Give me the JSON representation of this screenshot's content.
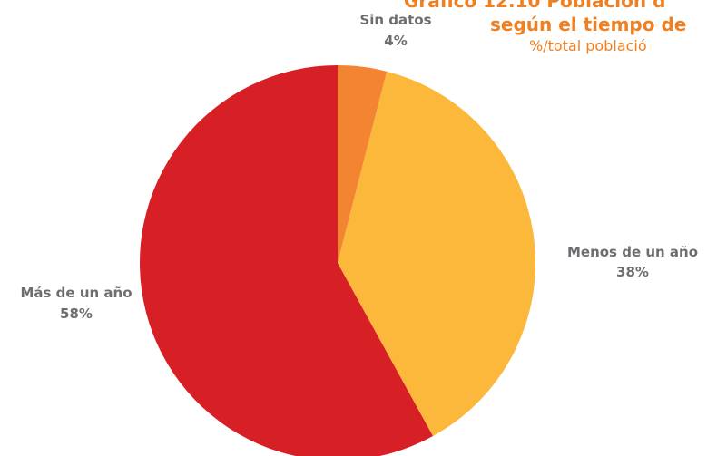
{
  "chart_data": {
    "type": "pie",
    "title": [
      "Gráfico 12.10 Población d",
      "según el tiempo de"
    ],
    "subtitle": "%/total població",
    "categories": [
      "Sin datos",
      "Menos de un año",
      "Más de un año"
    ],
    "values": [
      4,
      38,
      58
    ],
    "value_labels": [
      "4%",
      "38%",
      "58%"
    ],
    "colors": [
      "#f38431",
      "#fbb83a",
      "#d71f26"
    ],
    "title_color": "#f07f1f"
  }
}
